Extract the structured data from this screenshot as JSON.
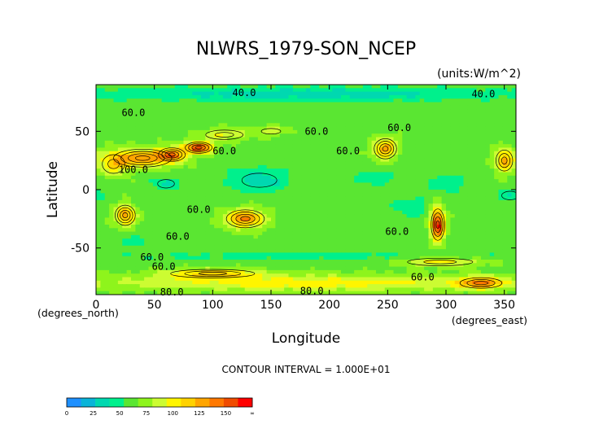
{
  "chart_data": {
    "type": "heatmap",
    "title": "NLWRS_1979-SON_NCEP",
    "units": "(units:W/m^2)",
    "xlabel": "Longitude",
    "ylabel": "Latitude",
    "x_unit_label": "(degrees_east)",
    "y_unit_label": "(degrees_north)",
    "xlim": [
      0,
      360
    ],
    "ylim": [
      -90,
      90
    ],
    "x_ticks": [
      0,
      50,
      100,
      150,
      200,
      250,
      300,
      350
    ],
    "y_ticks": [
      -50,
      0,
      50
    ],
    "contour_interval_text": "CONTOUR INTERVAL = 1.000E+01",
    "contour_labels": [
      {
        "text": "40.0",
        "lon": 127,
        "lat": 83
      },
      {
        "text": "40.0",
        "lon": 332,
        "lat": 82
      },
      {
        "text": "60.0",
        "lon": 32,
        "lat": 66
      },
      {
        "text": "60.0",
        "lon": 189,
        "lat": 50
      },
      {
        "text": "60.0",
        "lon": 260,
        "lat": 53
      },
      {
        "text": "60.0",
        "lon": 216,
        "lat": 33
      },
      {
        "text": "60.0",
        "lon": 110,
        "lat": 33
      },
      {
        "text": "100.0",
        "lon": 32,
        "lat": 17
      },
      {
        "text": "60.0",
        "lon": 88,
        "lat": -17
      },
      {
        "text": "60.0",
        "lon": 70,
        "lat": -40
      },
      {
        "text": "60.0",
        "lon": 258,
        "lat": -36
      },
      {
        "text": "60.0",
        "lon": 48,
        "lat": -58
      },
      {
        "text": "60.0",
        "lon": 58,
        "lat": -66
      },
      {
        "text": "60.0",
        "lon": 280,
        "lat": -75
      },
      {
        "text": "80.0",
        "lon": 65,
        "lat": -88
      },
      {
        "text": "80.0",
        "lon": 185,
        "lat": -87
      }
    ],
    "colorbar": {
      "ticks": [
        "0",
        "25",
        "50",
        "75",
        "100",
        "125",
        "150",
        "∞"
      ],
      "bins": [
        {
          "from": 0,
          "to": 12.5,
          "color": "#1e90ff"
        },
        {
          "from": 12.5,
          "to": 25,
          "color": "#0ab4d8"
        },
        {
          "from": 25,
          "to": 37.5,
          "color": "#00d8b0"
        },
        {
          "from": 37.5,
          "to": 50,
          "color": "#00f08c"
        },
        {
          "from": 50,
          "to": 62.5,
          "color": "#5ae632"
        },
        {
          "from": 62.5,
          "to": 75,
          "color": "#8ef41c"
        },
        {
          "from": 75,
          "to": 87.5,
          "color": "#ccfc32"
        },
        {
          "from": 87.5,
          "to": 100,
          "color": "#fff500"
        },
        {
          "from": 100,
          "to": 112.5,
          "color": "#ffd200"
        },
        {
          "from": 112.5,
          "to": 125,
          "color": "#ffa500"
        },
        {
          "from": 125,
          "to": 137.5,
          "color": "#ff7800"
        },
        {
          "from": 137.5,
          "to": 150,
          "color": "#f04b00"
        },
        {
          "from": 150,
          "to": 175,
          "color": "#ff0000"
        }
      ]
    },
    "base_value": 58,
    "features": [
      {
        "lon": 40,
        "lat": 27,
        "rx": 26,
        "ry": 8,
        "value": 120
      },
      {
        "lon": 65,
        "lat": 30,
        "rx": 12,
        "ry": 6,
        "value": 118
      },
      {
        "lon": 88,
        "lat": 36,
        "rx": 12,
        "ry": 5,
        "value": 150
      },
      {
        "lon": 15,
        "lat": 22,
        "rx": 12,
        "ry": 10,
        "value": 98
      },
      {
        "lon": 110,
        "lat": 47,
        "rx": 20,
        "ry": 5,
        "value": 90
      },
      {
        "lon": 150,
        "lat": 50,
        "rx": 14,
        "ry": 4,
        "value": 85
      },
      {
        "lon": 248,
        "lat": 35,
        "rx": 10,
        "ry": 9,
        "value": 118
      },
      {
        "lon": 350,
        "lat": 25,
        "rx": 8,
        "ry": 10,
        "value": 115
      },
      {
        "lon": 25,
        "lat": -22,
        "rx": 9,
        "ry": 9,
        "value": 120
      },
      {
        "lon": 128,
        "lat": -25,
        "rx": 17,
        "ry": 8,
        "value": 125
      },
      {
        "lon": 293,
        "lat": -30,
        "rx": 6,
        "ry": 14,
        "value": 155
      },
      {
        "lon": 295,
        "lat": -62,
        "rx": 35,
        "ry": 4,
        "value": 95
      },
      {
        "lon": 180,
        "lat": -80,
        "rx": 180,
        "ry": 7,
        "value": 95
      },
      {
        "lon": 100,
        "lat": -72,
        "rx": 40,
        "ry": 4,
        "value": 105
      },
      {
        "lon": 330,
        "lat": -80,
        "rx": 20,
        "ry": 5,
        "value": 115
      },
      {
        "lon": 140,
        "lat": 8,
        "rx": 25,
        "ry": 10,
        "value": 30
      },
      {
        "lon": 60,
        "lat": 5,
        "rx": 12,
        "ry": 6,
        "value": 34
      },
      {
        "lon": 240,
        "lat": 10,
        "rx": 18,
        "ry": 6,
        "value": 40
      },
      {
        "lon": 270,
        "lat": -15,
        "rx": 15,
        "ry": 10,
        "value": 42
      },
      {
        "lon": 300,
        "lat": 5,
        "rx": 16,
        "ry": 8,
        "value": 40
      },
      {
        "lon": 355,
        "lat": -5,
        "rx": 12,
        "ry": 6,
        "value": 38
      },
      {
        "lon": 180,
        "lat": 82,
        "rx": 180,
        "ry": 6,
        "value": 30
      },
      {
        "lon": 180,
        "lat": -57,
        "rx": 180,
        "ry": 4,
        "value": 45
      },
      {
        "lon": 30,
        "lat": -45,
        "rx": 15,
        "ry": 5,
        "value": 42
      }
    ]
  }
}
